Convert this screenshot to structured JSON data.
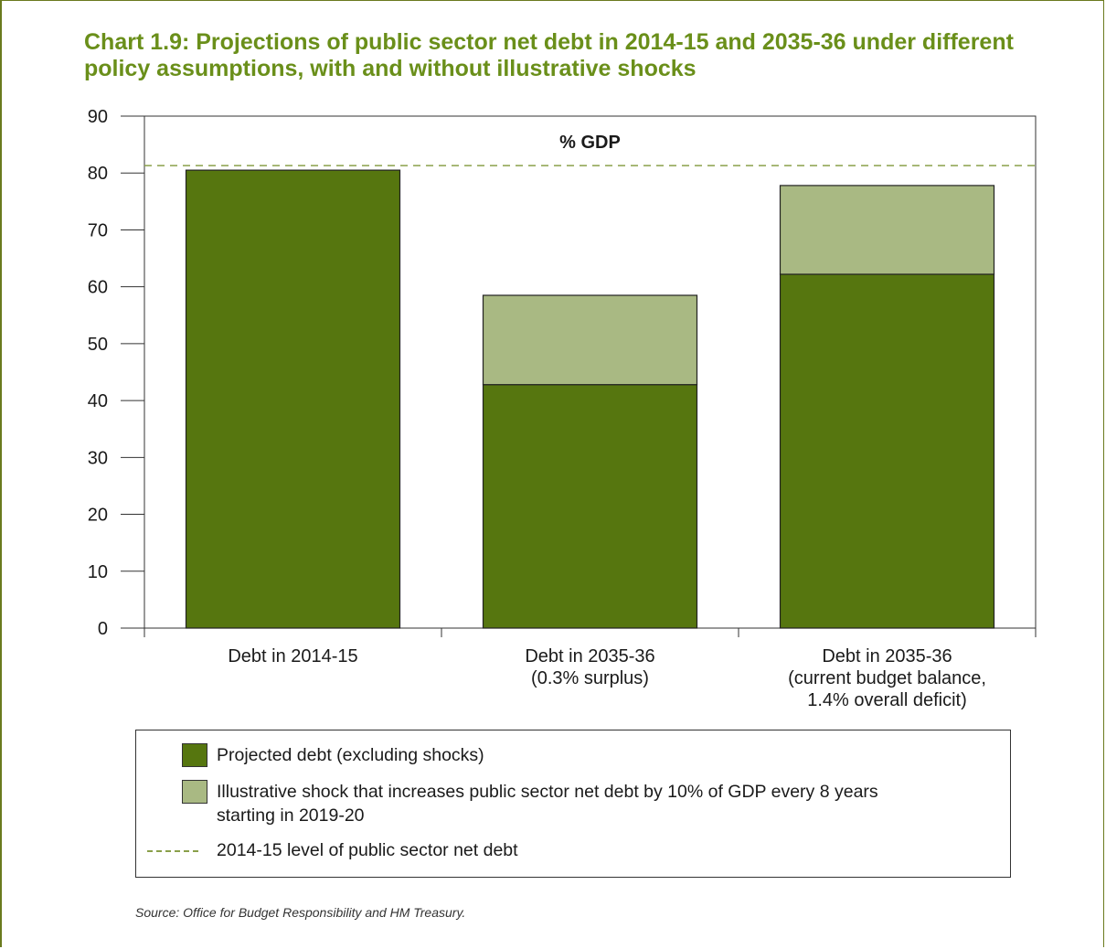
{
  "title": "Chart 1.9: Projections of public sector net debt in 2014-15 and 2035-36 under different policy assumptions, with and without illustrative shocks",
  "source": "Source: Office for Budget Responsibility and HM Treasury.",
  "colors": {
    "title": "#6a8f1a",
    "projected": "#56760f",
    "shock": "#a9b983",
    "dashed_line": "#8aa04a",
    "frame": "#6a7a1e"
  },
  "chart_data": {
    "type": "bar",
    "stacked": true,
    "unit_label": "% GDP",
    "categories": [
      [
        "Debt in 2014-15"
      ],
      [
        "Debt in 2035-36",
        "(0.3% surplus)"
      ],
      [
        "Debt in 2035-36",
        "(current budget balance,",
        "1.4% overall deficit)"
      ]
    ],
    "series": [
      {
        "name": "Projected debt (excluding shocks)",
        "values": [
          80.5,
          42.8,
          62.2
        ],
        "color": "#56760f"
      },
      {
        "name": "Illustrative shock that increases public sector net debt by 10% of GDP every 8 years starting in 2019-20",
        "values": [
          0,
          15.7,
          15.6
        ],
        "color": "#a9b983"
      }
    ],
    "reference_line": {
      "name": "2014-15 level of public sector net debt",
      "value": 80.5,
      "style": "dashed",
      "color": "#8aa04a"
    },
    "ylim": [
      0,
      90
    ],
    "yticks": [
      0,
      10,
      20,
      30,
      40,
      50,
      60,
      70,
      80,
      90
    ],
    "grid": false,
    "legend_position": "bottom"
  },
  "legend": {
    "items": [
      {
        "type": "box",
        "color": "#56760f",
        "lines": [
          "Projected debt (excluding shocks)"
        ]
      },
      {
        "type": "box",
        "color": "#a9b983",
        "lines": [
          "Illustrative shock that increases public sector net debt by 10% of GDP every 8 years",
          "starting in 2019-20"
        ]
      },
      {
        "type": "dash",
        "color": "#8aa04a",
        "lines": [
          "2014-15 level of public sector net debt"
        ]
      }
    ]
  }
}
